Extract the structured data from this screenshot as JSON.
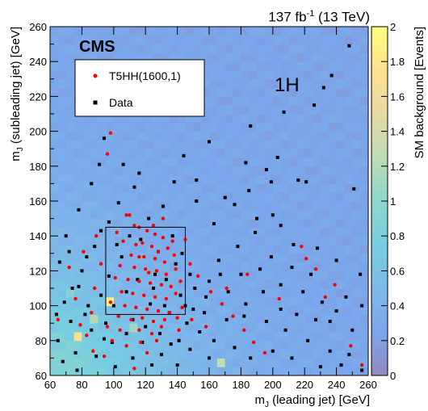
{
  "header": {
    "lumi_prefix": "137 fb",
    "lumi_sup": "-1",
    "lumi_suffix": " (13 TeV)"
  },
  "colors": {
    "signal": "#ff0000",
    "data": "#000000",
    "palette": [
      "#352a87",
      "#0f5cdd",
      "#1481d6",
      "#06a4ca",
      "#2eb7a4",
      "#87bf77",
      "#d1bb59",
      "#fec832",
      "#f9fb0e"
    ],
    "palette_alpha": 0.55
  },
  "chart_data": {
    "type": "heatmap",
    "cms_label": "CMS",
    "region_label": "1H",
    "xlabel_main": "m",
    "xlabel_sub": "J",
    "xlabel_rest": " (leading jet) [GeV]",
    "ylabel_main": "m",
    "ylabel_sub": "J",
    "ylabel_rest": " (subleading jet) [GeV]",
    "zlabel": "SM background [Events]",
    "xlim": [
      60,
      260
    ],
    "ylim": [
      60,
      260
    ],
    "zlim": [
      0,
      2
    ],
    "xticks": [
      60,
      80,
      100,
      120,
      140,
      160,
      180,
      200,
      220,
      240,
      260
    ],
    "yticks": [
      60,
      80,
      100,
      120,
      140,
      160,
      180,
      200,
      220,
      240,
      260
    ],
    "zticks": [
      0,
      0.2,
      0.4,
      0.6,
      0.8,
      1,
      1.2,
      1.4,
      1.6,
      1.8,
      2
    ],
    "bin_width": 5,
    "signal_region": {
      "x": [
        95,
        145
      ],
      "y": [
        95,
        145
      ]
    },
    "legend": [
      {
        "label": "T5HH(1600,1)",
        "marker": "circle",
        "color": "#ff0000"
      },
      {
        "label": "Data",
        "marker": "square",
        "color": "#000000"
      }
    ],
    "hot_bins": [
      {
        "x": 95,
        "y": 100,
        "z": 1.9
      },
      {
        "x": 75,
        "y": 80,
        "z": 1.7
      },
      {
        "x": 85,
        "y": 90,
        "z": 1.2
      },
      {
        "x": 110,
        "y": 85,
        "z": 1.1
      },
      {
        "x": 165,
        "y": 65,
        "z": 1.3
      },
      {
        "x": 70,
        "y": 105,
        "z": 0.9
      }
    ],
    "data_points": [
      [
        248,
        249
      ],
      [
        237,
        232
      ],
      [
        232,
        225
      ],
      [
        207,
        211
      ],
      [
        186,
        203
      ],
      [
        226,
        215
      ],
      [
        203,
        185
      ],
      [
        196,
        178
      ],
      [
        221,
        171
      ],
      [
        251,
        167
      ],
      [
        216,
        172
      ],
      [
        183,
        182
      ],
      [
        160,
        194
      ],
      [
        152,
        160
      ],
      [
        176,
        158
      ],
      [
        200,
        152
      ],
      [
        190,
        150
      ],
      [
        205,
        146
      ],
      [
        213,
        135
      ],
      [
        228,
        133
      ],
      [
        240,
        126
      ],
      [
        255,
        118
      ],
      [
        246,
        105
      ],
      [
        231,
        102
      ],
      [
        219,
        108
      ],
      [
        205,
        112
      ],
      [
        192,
        121
      ],
      [
        180,
        118
      ],
      [
        172,
        108
      ],
      [
        167,
        118
      ],
      [
        158,
        105
      ],
      [
        150,
        98
      ],
      [
        146,
        90
      ],
      [
        154,
        85
      ],
      [
        163,
        80
      ],
      [
        171,
        92
      ],
      [
        182,
        94
      ],
      [
        196,
        91
      ],
      [
        208,
        86
      ],
      [
        222,
        80
      ],
      [
        236,
        74
      ],
      [
        248,
        72
      ],
      [
        256,
        63
      ],
      [
        243,
        66
      ],
      [
        230,
        65
      ],
      [
        212,
        70
      ],
      [
        200,
        74
      ],
      [
        186,
        70
      ],
      [
        176,
        76
      ],
      [
        160,
        70
      ],
      [
        148,
        75
      ],
      [
        140,
        66
      ],
      [
        130,
        72
      ],
      [
        118,
        79
      ],
      [
        108,
        84
      ],
      [
        95,
        90
      ],
      [
        82,
        95
      ],
      [
        74,
        110
      ],
      [
        66,
        125
      ],
      [
        70,
        140
      ],
      [
        78,
        155
      ],
      [
        86,
        170
      ],
      [
        91,
        181
      ],
      [
        94,
        196
      ],
      [
        106,
        181
      ],
      [
        113,
        168
      ],
      [
        122,
        150
      ],
      [
        131,
        157
      ],
      [
        138,
        171
      ],
      [
        144,
        186
      ],
      [
        152,
        172
      ],
      [
        97,
        148
      ],
      [
        88,
        134
      ],
      [
        80,
        120
      ],
      [
        73,
        91
      ],
      [
        65,
        80
      ],
      [
        68,
        68
      ],
      [
        77,
        63
      ],
      [
        89,
        71
      ],
      [
        99,
        79
      ],
      [
        112,
        92
      ],
      [
        123,
        101
      ],
      [
        135,
        96
      ],
      [
        142,
        106
      ],
      [
        148,
        118
      ],
      [
        139,
        124
      ],
      [
        128,
        131
      ],
      [
        117,
        138
      ],
      [
        105,
        128
      ],
      [
        97,
        117
      ],
      [
        92,
        106
      ],
      [
        84,
        100
      ],
      [
        78,
        111
      ],
      [
        72,
        131
      ],
      [
        100,
        100
      ],
      [
        108,
        108
      ],
      [
        115,
        115
      ],
      [
        125,
        110
      ],
      [
        133,
        115
      ],
      [
        143,
        130
      ],
      [
        137,
        140
      ],
      [
        110,
        140
      ],
      [
        102,
        135
      ],
      [
        120,
        88
      ],
      [
        129,
        84
      ],
      [
        141,
        80
      ],
      [
        157,
        96
      ],
      [
        166,
        126
      ],
      [
        178,
        134
      ],
      [
        189,
        142
      ],
      [
        199,
        128
      ],
      [
        212,
        122
      ],
      [
        224,
        118
      ],
      [
        236,
        91
      ],
      [
        250,
        86
      ],
      [
        215,
        95
      ],
      [
        163,
        147
      ],
      [
        170,
        162
      ],
      [
        185,
        166
      ],
      [
        199,
        171
      ],
      [
        101,
        65
      ],
      [
        112,
        70
      ],
      [
        124,
        66
      ],
      [
        136,
        78
      ],
      [
        86,
        86
      ],
      [
        94,
        81
      ],
      [
        76,
        73
      ],
      [
        64,
        95
      ],
      [
        69,
        102
      ],
      [
        83,
        128
      ],
      [
        92,
        143
      ],
      [
        103,
        159
      ],
      [
        116,
        176
      ],
      [
        126,
        118
      ],
      [
        132,
        100
      ],
      [
        145,
        100
      ],
      [
        151,
        110
      ],
      [
        160,
        114
      ],
      [
        183,
        101
      ],
      [
        194,
        108
      ],
      [
        205,
        98
      ],
      [
        227,
        92
      ],
      [
        240,
        97
      ],
      [
        256,
        100
      ]
    ],
    "signal_points": [
      [
        98,
        199
      ],
      [
        96,
        187
      ],
      [
        108,
        152
      ],
      [
        113,
        146
      ],
      [
        116,
        145
      ],
      [
        121,
        143
      ],
      [
        126,
        141
      ],
      [
        131,
        139
      ],
      [
        106,
        137
      ],
      [
        118,
        136
      ],
      [
        124,
        134
      ],
      [
        128,
        131
      ],
      [
        134,
        133
      ],
      [
        111,
        129
      ],
      [
        119,
        128
      ],
      [
        126,
        127
      ],
      [
        132,
        125
      ],
      [
        138,
        129
      ],
      [
        104,
        123
      ],
      [
        113,
        122
      ],
      [
        120,
        121
      ],
      [
        127,
        120
      ],
      [
        133,
        118
      ],
      [
        139,
        121
      ],
      [
        101,
        116
      ],
      [
        109,
        115
      ],
      [
        116,
        114
      ],
      [
        123,
        113
      ],
      [
        130,
        112
      ],
      [
        136,
        111
      ],
      [
        142,
        114
      ],
      [
        105,
        108
      ],
      [
        112,
        107
      ],
      [
        119,
        106
      ],
      [
        126,
        105
      ],
      [
        133,
        104
      ],
      [
        139,
        107
      ],
      [
        98,
        102
      ],
      [
        107,
        100
      ],
      [
        114,
        99
      ],
      [
        121,
        98
      ],
      [
        128,
        97
      ],
      [
        135,
        96
      ],
      [
        143,
        99
      ],
      [
        103,
        94
      ],
      [
        111,
        92
      ],
      [
        118,
        93
      ],
      [
        125,
        91
      ],
      [
        132,
        92
      ],
      [
        140,
        93
      ],
      [
        96,
        88
      ],
      [
        104,
        86
      ],
      [
        116,
        86
      ],
      [
        124,
        84
      ],
      [
        130,
        88
      ],
      [
        99,
        80
      ],
      [
        108,
        77
      ],
      [
        117,
        79
      ],
      [
        127,
        80
      ],
      [
        87,
        74
      ],
      [
        94,
        71
      ],
      [
        83,
        83
      ],
      [
        72,
        122
      ],
      [
        81,
        131
      ],
      [
        89,
        140
      ],
      [
        65,
        92
      ],
      [
        76,
        104
      ],
      [
        88,
        110
      ],
      [
        148,
        124
      ],
      [
        153,
        117
      ],
      [
        161,
        108
      ],
      [
        168,
        101
      ],
      [
        175,
        94
      ],
      [
        182,
        86
      ],
      [
        188,
        79
      ],
      [
        195,
        73
      ],
      [
        218,
        134
      ],
      [
        227,
        121
      ],
      [
        239,
        112
      ],
      [
        249,
        77
      ],
      [
        256,
        66
      ],
      [
        121,
        73
      ],
      [
        113,
        64
      ],
      [
        141,
        86
      ],
      [
        102,
        142
      ],
      [
        92,
        124
      ],
      [
        86,
        96
      ],
      [
        79,
        89
      ],
      [
        145,
        138
      ],
      [
        137,
        137
      ],
      [
        149,
        92
      ],
      [
        158,
        88
      ],
      [
        171,
        110
      ],
      [
        184,
        118
      ],
      [
        204,
        104
      ],
      [
        221,
        127
      ],
      [
        233,
        105
      ],
      [
        110,
        152
      ],
      [
        131,
        150
      ],
      [
        125,
        146
      ],
      [
        116,
        128
      ],
      [
        122,
        119
      ],
      [
        114,
        135
      ]
    ]
  }
}
